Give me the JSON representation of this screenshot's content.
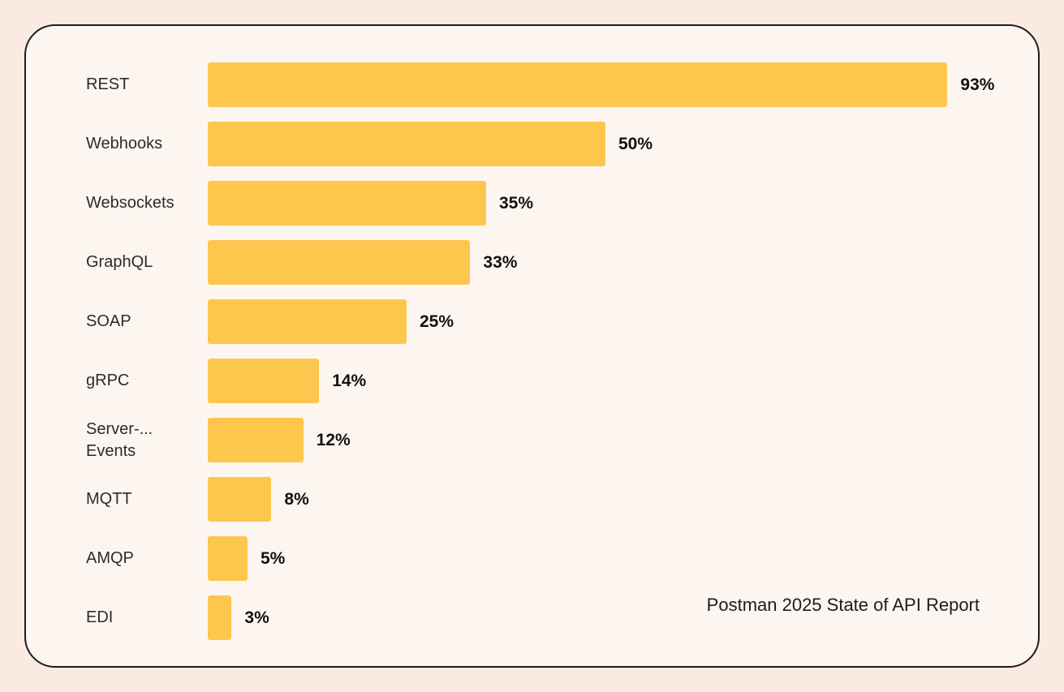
{
  "chart_data": {
    "type": "bar",
    "orientation": "horizontal",
    "title": "",
    "xlabel": "",
    "ylabel": "",
    "xlim": [
      0,
      100
    ],
    "grid": false,
    "legend": false,
    "categories": [
      "REST",
      "Webhooks",
      "Websockets",
      "GraphQL",
      "SOAP",
      "gRPC",
      "Server-...\nEvents",
      "MQTT",
      "AMQP",
      "EDI"
    ],
    "values": [
      93,
      50,
      35,
      33,
      25,
      14,
      12,
      8,
      5,
      3
    ],
    "display_values": [
      "93%",
      "50%",
      "35%",
      "33%",
      "25%",
      "14%",
      "12%",
      "8%",
      "5%",
      "3%"
    ],
    "value_suffix": "%",
    "source": "Postman 2025 State of API Report"
  },
  "colors": {
    "page_background": "#FBEAE2",
    "card_background": "#FDF6F0",
    "card_border": "#1C1C1C",
    "bar": "#FDC64D",
    "category_label": "#2B2B2B",
    "value_label": "#121212"
  }
}
